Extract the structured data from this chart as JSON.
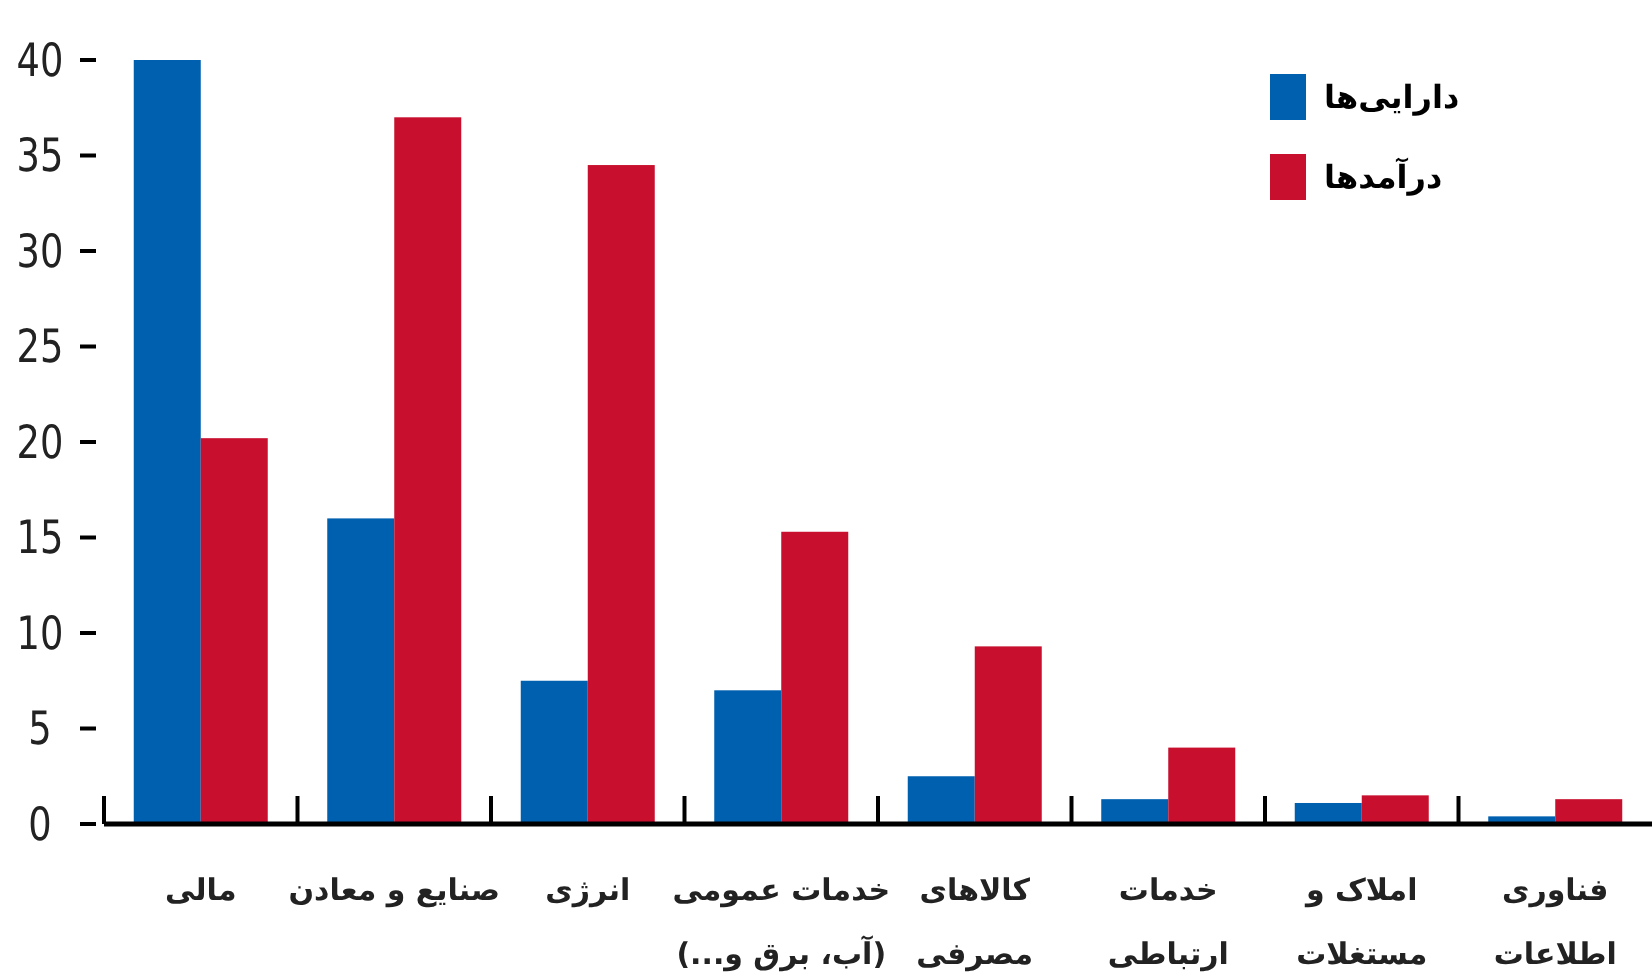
{
  "chart_data": {
    "type": "bar",
    "categories": [
      "مالی",
      "صنایع و معادن",
      "انرژی",
      "خدمات عمومی\n(آب، برق و...)",
      "کالاهای\nمصرفی",
      "خدمات\nارتباطی",
      "املاک و\nمستغلات",
      "فناوری\nاطلاعات"
    ],
    "series": [
      {
        "name": "دارایی‌ها",
        "color": "#0060b0",
        "values": [
          40,
          16,
          7.5,
          7,
          2.5,
          1.3,
          1.1,
          0.4
        ]
      },
      {
        "name": "درآمدها",
        "color": "#c8102e",
        "values": [
          20.2,
          37,
          34.5,
          15.3,
          9.3,
          4,
          1.5,
          1.3
        ]
      }
    ],
    "ylim": [
      0,
      40
    ],
    "yticks": [
      0,
      5,
      10,
      15,
      20,
      25,
      30,
      35,
      40
    ],
    "legend": "top right",
    "grid": false
  }
}
